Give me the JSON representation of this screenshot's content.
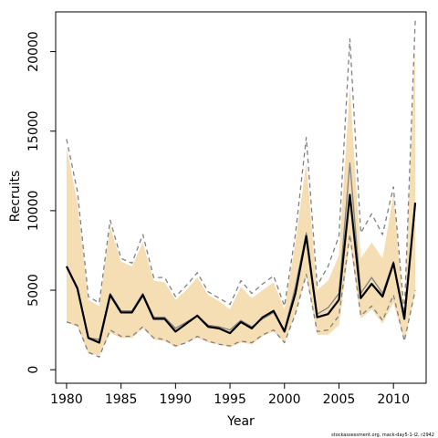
{
  "chart_data": {
    "type": "line",
    "xlabel": "Year",
    "ylabel": "Recruits",
    "xlim": [
      1979.0,
      2013.0
    ],
    "ylim": [
      -850,
      22500
    ],
    "x_ticks": [
      1980,
      1985,
      1990,
      1995,
      2000,
      2005,
      2010
    ],
    "y_ticks": [
      0,
      5000,
      10000,
      15000,
      20000
    ],
    "x_tick_labels": [
      "1980",
      "1985",
      "1990",
      "1995",
      "2000",
      "2005",
      "2010"
    ],
    "y_tick_labels": [
      "0",
      "5000",
      "10000",
      "15000",
      "20000"
    ],
    "grid": false,
    "legend": "none",
    "x": [
      1980,
      1981,
      1982,
      1983,
      1984,
      1985,
      1986,
      1987,
      1988,
      1989,
      1990,
      1991,
      1992,
      1993,
      1994,
      1995,
      1996,
      1997,
      1998,
      1999,
      2000,
      2001,
      2002,
      2003,
      2004,
      2005,
      2006,
      2007,
      2008,
      2009,
      2010,
      2011,
      2012
    ],
    "series": [
      {
        "role": "band-upper",
        "values": [
          14000,
          10500,
          4400,
          4000,
          9000,
          6800,
          6500,
          8000,
          5600,
          5500,
          4400,
          5000,
          5800,
          4700,
          4300,
          3800,
          5200,
          4500,
          5000,
          5500,
          3800,
          8000,
          13000,
          5000,
          5600,
          7200,
          17800,
          7000,
          8000,
          7000,
          11000,
          3400,
          20500
        ]
      },
      {
        "role": "band-lower",
        "values": [
          3000,
          2700,
          1000,
          900,
          2300,
          2000,
          2000,
          2600,
          1900,
          1800,
          1400,
          1700,
          2000,
          1700,
          1600,
          1400,
          1700,
          1600,
          2100,
          2400,
          1700,
          3500,
          6000,
          2200,
          2200,
          2800,
          8000,
          3200,
          3800,
          2900,
          4200,
          1800,
          4900
        ]
      },
      {
        "role": "upper-interval",
        "values": [
          14500,
          11200,
          4600,
          4200,
          9400,
          7000,
          6700,
          8500,
          5800,
          5800,
          4600,
          5300,
          6100,
          4900,
          4500,
          4100,
          5600,
          4800,
          5400,
          5900,
          4000,
          8500,
          14600,
          5300,
          6500,
          8400,
          20800,
          8600,
          9800,
          8500,
          11500,
          3500,
          22000
        ]
      },
      {
        "role": "median",
        "values": [
          6500,
          5200,
          2000,
          1900,
          4800,
          3700,
          3700,
          4800,
          3300,
          3300,
          2600,
          3000,
          3400,
          2800,
          2700,
          2500,
          3100,
          2700,
          3200,
          3600,
          2500,
          5200,
          8600,
          3500,
          3900,
          4800,
          13000,
          4800,
          5800,
          4800,
          6800,
          3300,
          10400
        ]
      },
      {
        "role": "mle",
        "values": [
          6500,
          5100,
          2000,
          1700,
          4700,
          3600,
          3600,
          4700,
          3200,
          3200,
          2400,
          2900,
          3400,
          2700,
          2600,
          2300,
          3000,
          2600,
          3300,
          3700,
          2400,
          4800,
          8400,
          3300,
          3500,
          4400,
          11000,
          4500,
          5400,
          4600,
          6700,
          3200,
          10500
        ]
      },
      {
        "role": "lower-interval",
        "values": [
          3000,
          2800,
          1100,
          800,
          2500,
          2100,
          2100,
          2700,
          2000,
          1900,
          1500,
          1700,
          2100,
          1800,
          1600,
          1500,
          1800,
          1700,
          2200,
          2500,
          1700,
          3500,
          6000,
          2400,
          2500,
          3400,
          8500,
          3400,
          4000,
          3100,
          4700,
          1800,
          5000
        ]
      }
    ],
    "annotation": "stockassessment.org, mack-day5-1-l2, r2942"
  },
  "colors": {
    "band": "#f5deb3",
    "mle": "#000000",
    "median": "#808080",
    "interval": "#808080",
    "axis": "#000000"
  }
}
